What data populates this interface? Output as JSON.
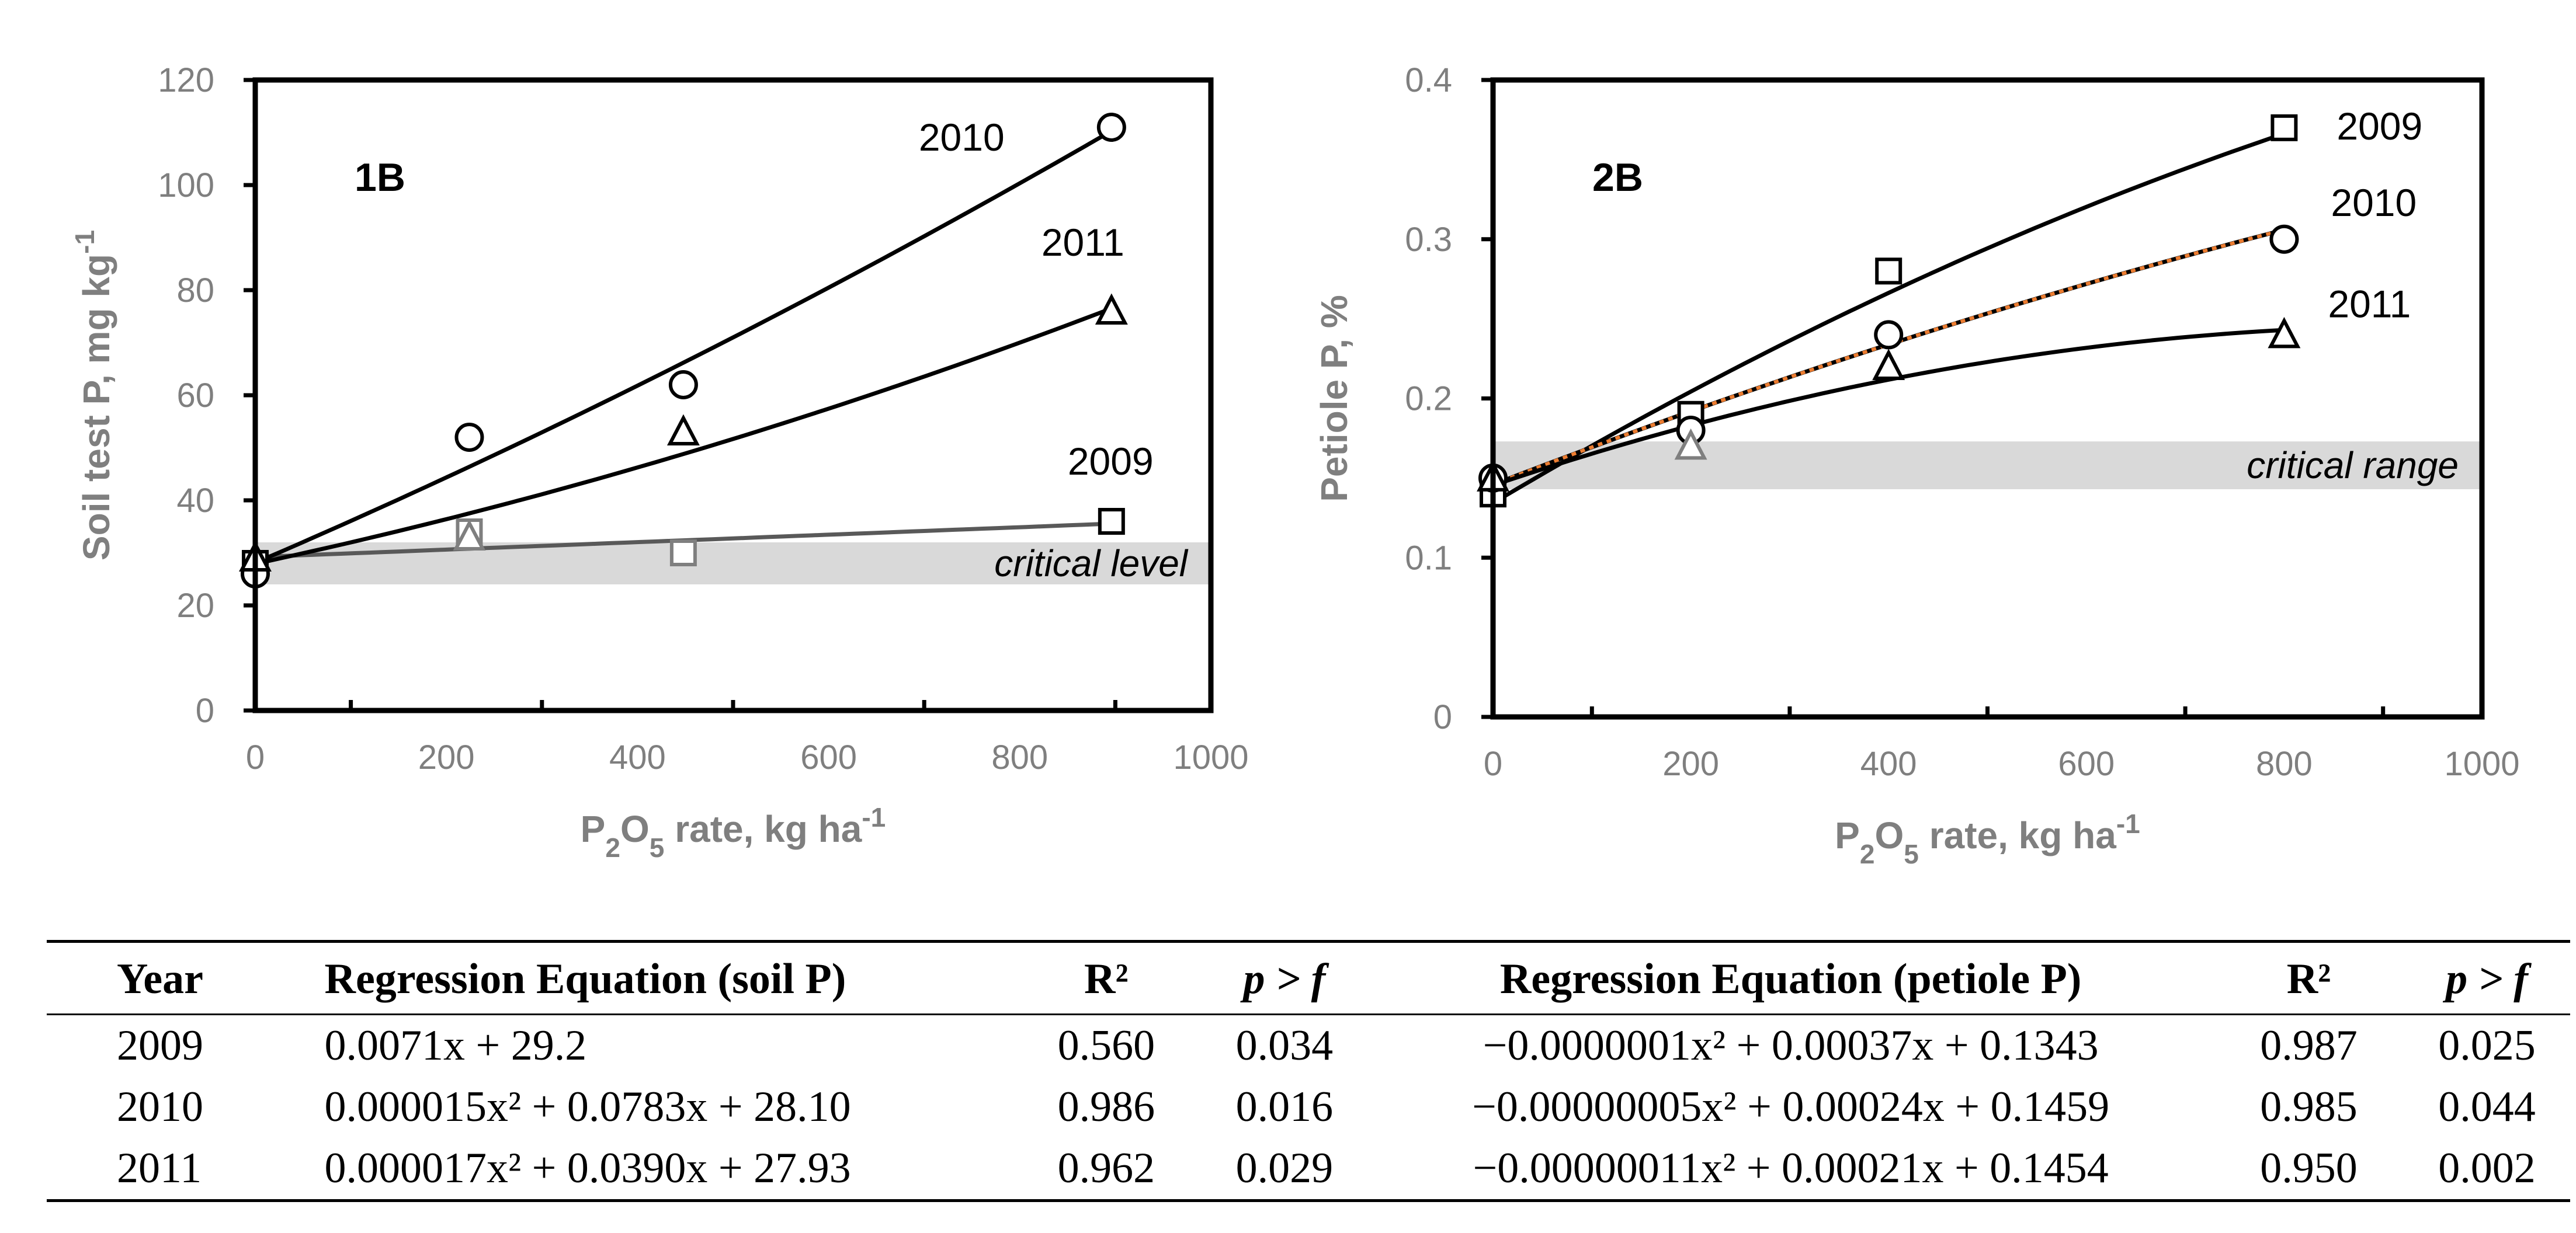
{
  "chart_data": [
    {
      "type": "scatter",
      "panel_label": "1B",
      "xlabel": "P2O5 rate, kg ha-1",
      "ylabel": "Soil test P, mg kg-1",
      "xlim": [
        0,
        1000
      ],
      "ylim": [
        0,
        120
      ],
      "x_ticks": [
        0,
        200,
        400,
        600,
        800,
        1000
      ],
      "y_ticks": [
        0,
        20,
        40,
        60,
        80,
        100,
        120
      ],
      "grid": false,
      "band": {
        "from": 24,
        "to": 32,
        "label": "critical level"
      },
      "series": [
        {
          "name": "2009",
          "marker": "square",
          "x": [
            0,
            224,
            448,
            896
          ],
          "y": [
            28,
            34,
            30,
            36
          ],
          "fit": {
            "a": 0,
            "b": 0.0071,
            "c": 29.2
          }
        },
        {
          "name": "2010",
          "marker": "circle",
          "x": [
            0,
            224,
            448,
            896
          ],
          "y": [
            26,
            52,
            62,
            111
          ],
          "fit": {
            "a": 1.5e-05,
            "b": 0.0783,
            "c": 28.1
          }
        },
        {
          "name": "2011",
          "marker": "triangle",
          "x": [
            0,
            224,
            448,
            896
          ],
          "y": [
            29,
            33,
            53,
            76
          ],
          "fit": {
            "a": 1.7e-05,
            "b": 0.039,
            "c": 27.93
          }
        }
      ]
    },
    {
      "type": "scatter",
      "panel_label": "2B",
      "xlabel": "P2O5 rate, kg ha-1",
      "ylabel": "Petiole P, %",
      "xlim": [
        0,
        1000
      ],
      "ylim": [
        0,
        0.4
      ],
      "x_ticks": [
        0,
        200,
        400,
        600,
        800,
        1000
      ],
      "y_ticks": [
        0,
        0.1,
        0.2,
        0.3,
        0.4
      ],
      "grid": false,
      "band": {
        "from": 0.143,
        "to": 0.173,
        "label": "critical range"
      },
      "series": [
        {
          "name": "2009",
          "marker": "square",
          "x": [
            0,
            200,
            400,
            800
          ],
          "y": [
            0.14,
            0.19,
            0.28,
            0.37
          ],
          "fit": {
            "a": -1e-07,
            "b": 0.00037,
            "c": 0.1343
          }
        },
        {
          "name": "2010",
          "marker": "circle",
          "x": [
            0,
            200,
            400,
            800
          ],
          "y": [
            0.15,
            0.18,
            0.24,
            0.3
          ],
          "fit": {
            "a": -5e-08,
            "b": 0.00024,
            "c": 0.1459
          }
        },
        {
          "name": "2011",
          "marker": "triangle",
          "x": [
            0,
            200,
            400,
            800
          ],
          "y": [
            0.15,
            0.17,
            0.22,
            0.24
          ],
          "fit": {
            "a": -1.1e-07,
            "b": 0.00021,
            "c": 0.1454
          }
        }
      ]
    }
  ],
  "table": {
    "headers": [
      "Year",
      "Regression Equation (soil P)",
      "R²",
      "p > f",
      "Regression Equation (petiole P)",
      "R²",
      "p > f"
    ],
    "rows": [
      [
        "2009",
        "0.0071x + 29.2",
        "0.560",
        "0.034",
        "−0.0000001x² + 0.00037x + 0.1343",
        "0.987",
        "0.025"
      ],
      [
        "2010",
        "0.000015x² + 0.0783x + 28.10",
        "0.986",
        "0.016",
        "−0.00000005x² + 0.00024x + 0.1459",
        "0.985",
        "0.044"
      ],
      [
        "2011",
        "0.000017x² + 0.0390x + 27.93",
        "0.962",
        "0.029",
        "−0.00000011x² + 0.00021x + 0.1454",
        "0.950",
        "0.002"
      ]
    ]
  },
  "colors": {
    "line": "#000000",
    "line_gray": "#595959",
    "band": "#d9d9d9",
    "axis_text": "#7f7f7f",
    "dotted_overlay": "#ed7d31"
  }
}
